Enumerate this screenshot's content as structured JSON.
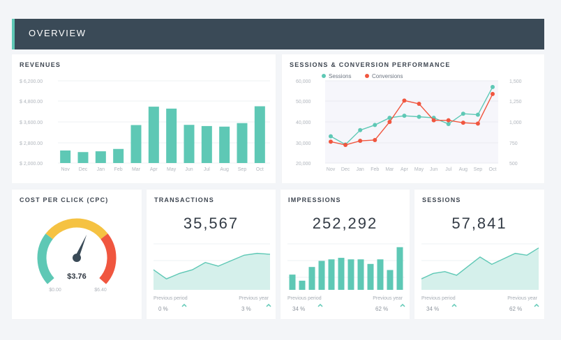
{
  "header": {
    "title": "OVERVIEW"
  },
  "colors": {
    "accent": "#5ec8b5",
    "red": "#f0563f",
    "header_bg": "#3a4a57"
  },
  "revenues": {
    "title": "REVENUES",
    "chart_data": {
      "type": "bar",
      "categories": [
        "Nov",
        "Dec",
        "Jan",
        "Feb",
        "Mar",
        "Apr",
        "May",
        "Jun",
        "Jul",
        "Aug",
        "Sep",
        "Oct"
      ],
      "values": [
        2640,
        2560,
        2600,
        2720,
        3940,
        4880,
        4780,
        3950,
        3890,
        3860,
        4040,
        4900
      ],
      "y_ticks": [
        "$ 6,200.00",
        "$ 4,800.00",
        "$ 3,600.00",
        "$ 2,800.00",
        "$ 2,000.00"
      ],
      "ylim": [
        2000,
        6200
      ],
      "color": "#5ec8b5"
    }
  },
  "sessions_conversion": {
    "title": "SESSIONS & CONVERSION PERFORMANCE",
    "chart_data": {
      "type": "line",
      "categories": [
        "Nov",
        "Dec",
        "Jan",
        "Feb",
        "Mar",
        "Apr",
        "May",
        "Jun",
        "Jul",
        "Aug",
        "Sep",
        "Oct"
      ],
      "series": [
        {
          "name": "Sessions",
          "axis": "left",
          "color": "#5ec8b5",
          "values": [
            33000,
            29000,
            36000,
            38500,
            42000,
            43000,
            42500,
            42000,
            39000,
            44000,
            43500,
            57000
          ]
        },
        {
          "name": "Conversions",
          "axis": "right",
          "color": "#f0563f",
          "values": [
            760,
            720,
            770,
            780,
            1000,
            1260,
            1220,
            1020,
            1020,
            990,
            980,
            1340
          ]
        }
      ],
      "left_ticks": [
        "60,000",
        "50,000",
        "40,000",
        "30,000",
        "20,000"
      ],
      "right_ticks": [
        "1,500",
        "1,250",
        "1,000",
        "750",
        "500"
      ],
      "left_range": [
        20000,
        60000
      ],
      "right_range": [
        500,
        1500
      ]
    }
  },
  "cpc": {
    "title": "COST PER CLICK (CPC)",
    "value": "$3.76",
    "min_label": "$0.00",
    "max_label": "$6.40",
    "min": 0,
    "max": 6.4,
    "current": 3.76
  },
  "transactions": {
    "title": "TRANSACTIONS",
    "value": "35,567",
    "prev_period_label": "Previous period",
    "prev_period_value": "0 %",
    "prev_year_label": "Previous year",
    "prev_year_value": "3 %",
    "chart_data": {
      "type": "area",
      "values": [
        22,
        12,
        18,
        22,
        30,
        26,
        32,
        38,
        40,
        39
      ],
      "ylim": [
        0,
        55
      ]
    }
  },
  "impressions": {
    "title": "IMPRESSIONS",
    "value": "252,292",
    "prev_period_label": "Previous period",
    "prev_period_value": "34 %",
    "prev_year_label": "Previous year",
    "prev_year_value": "62 %",
    "chart_data": {
      "type": "bar",
      "values": [
        10,
        6,
        15,
        19,
        20,
        21,
        20,
        20,
        17,
        20,
        13,
        28
      ],
      "ylim": [
        0,
        32
      ]
    }
  },
  "sessions": {
    "title": "SESSIONS",
    "value": "57,841",
    "prev_period_label": "Previous period",
    "prev_period_value": "34 %",
    "prev_year_label": "Previous year",
    "prev_year_value": "62 %",
    "chart_data": {
      "type": "area",
      "values": [
        12,
        18,
        20,
        16,
        26,
        36,
        28,
        34,
        40,
        38,
        46
      ],
      "ylim": [
        0,
        55
      ]
    }
  }
}
